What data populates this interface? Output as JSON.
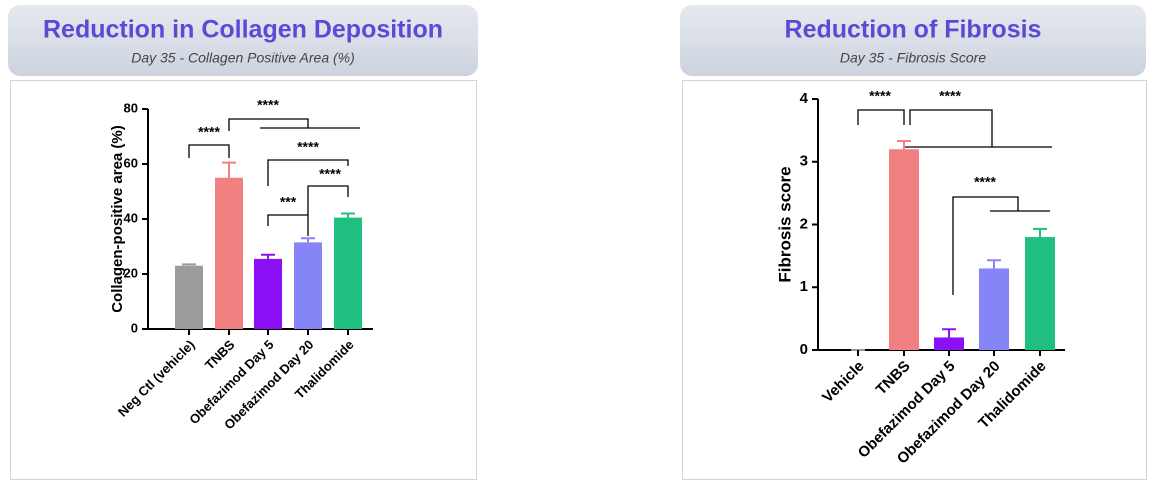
{
  "chart_data": [
    {
      "type": "bar",
      "title": "Reduction in Collagen Deposition",
      "subtitle": "Day 35 - Collagen Positive Area (%)",
      "ylabel": "Collagen-positive area (%)",
      "categories": [
        "Neg Ctl (vehicle)",
        "TNBS",
        "Obefazimod Day 5",
        "Obefazimod Day 20",
        "Thalidomide"
      ],
      "values": [
        23,
        55,
        25.5,
        31.5,
        40.5
      ],
      "errors": [
        0.5,
        5.5,
        1.5,
        1.5,
        1.5
      ],
      "colors": [
        "#9b9b9b",
        "#f28080",
        "#8b10f5",
        "#8585f7",
        "#1fbf7f"
      ],
      "ylim": [
        0,
        80
      ],
      "yticks": [
        0,
        20,
        40,
        60,
        80
      ],
      "annotations": [
        "****",
        "****",
        "****",
        "***",
        "****"
      ]
    },
    {
      "type": "bar",
      "title": "Reduction of Fibrosis",
      "subtitle": "Day 35 - Fibrosis Score",
      "ylabel": "Fibrosis score",
      "categories": [
        "Vehicle",
        "TNBS",
        "Obefazimod Day 5",
        "Obefazimod Day 20",
        "Thalidomide"
      ],
      "values": [
        0,
        3.2,
        0.2,
        1.3,
        1.8
      ],
      "errors": [
        0,
        0.13,
        0.13,
        0.13,
        0.13
      ],
      "colors": [
        "#9b9b9b",
        "#f28080",
        "#8b10f5",
        "#8585f7",
        "#1fbf7f"
      ],
      "ylim": [
        0,
        4
      ],
      "yticks": [
        0,
        1,
        2,
        3,
        4
      ],
      "annotations": [
        "****",
        "****",
        "****"
      ]
    }
  ]
}
